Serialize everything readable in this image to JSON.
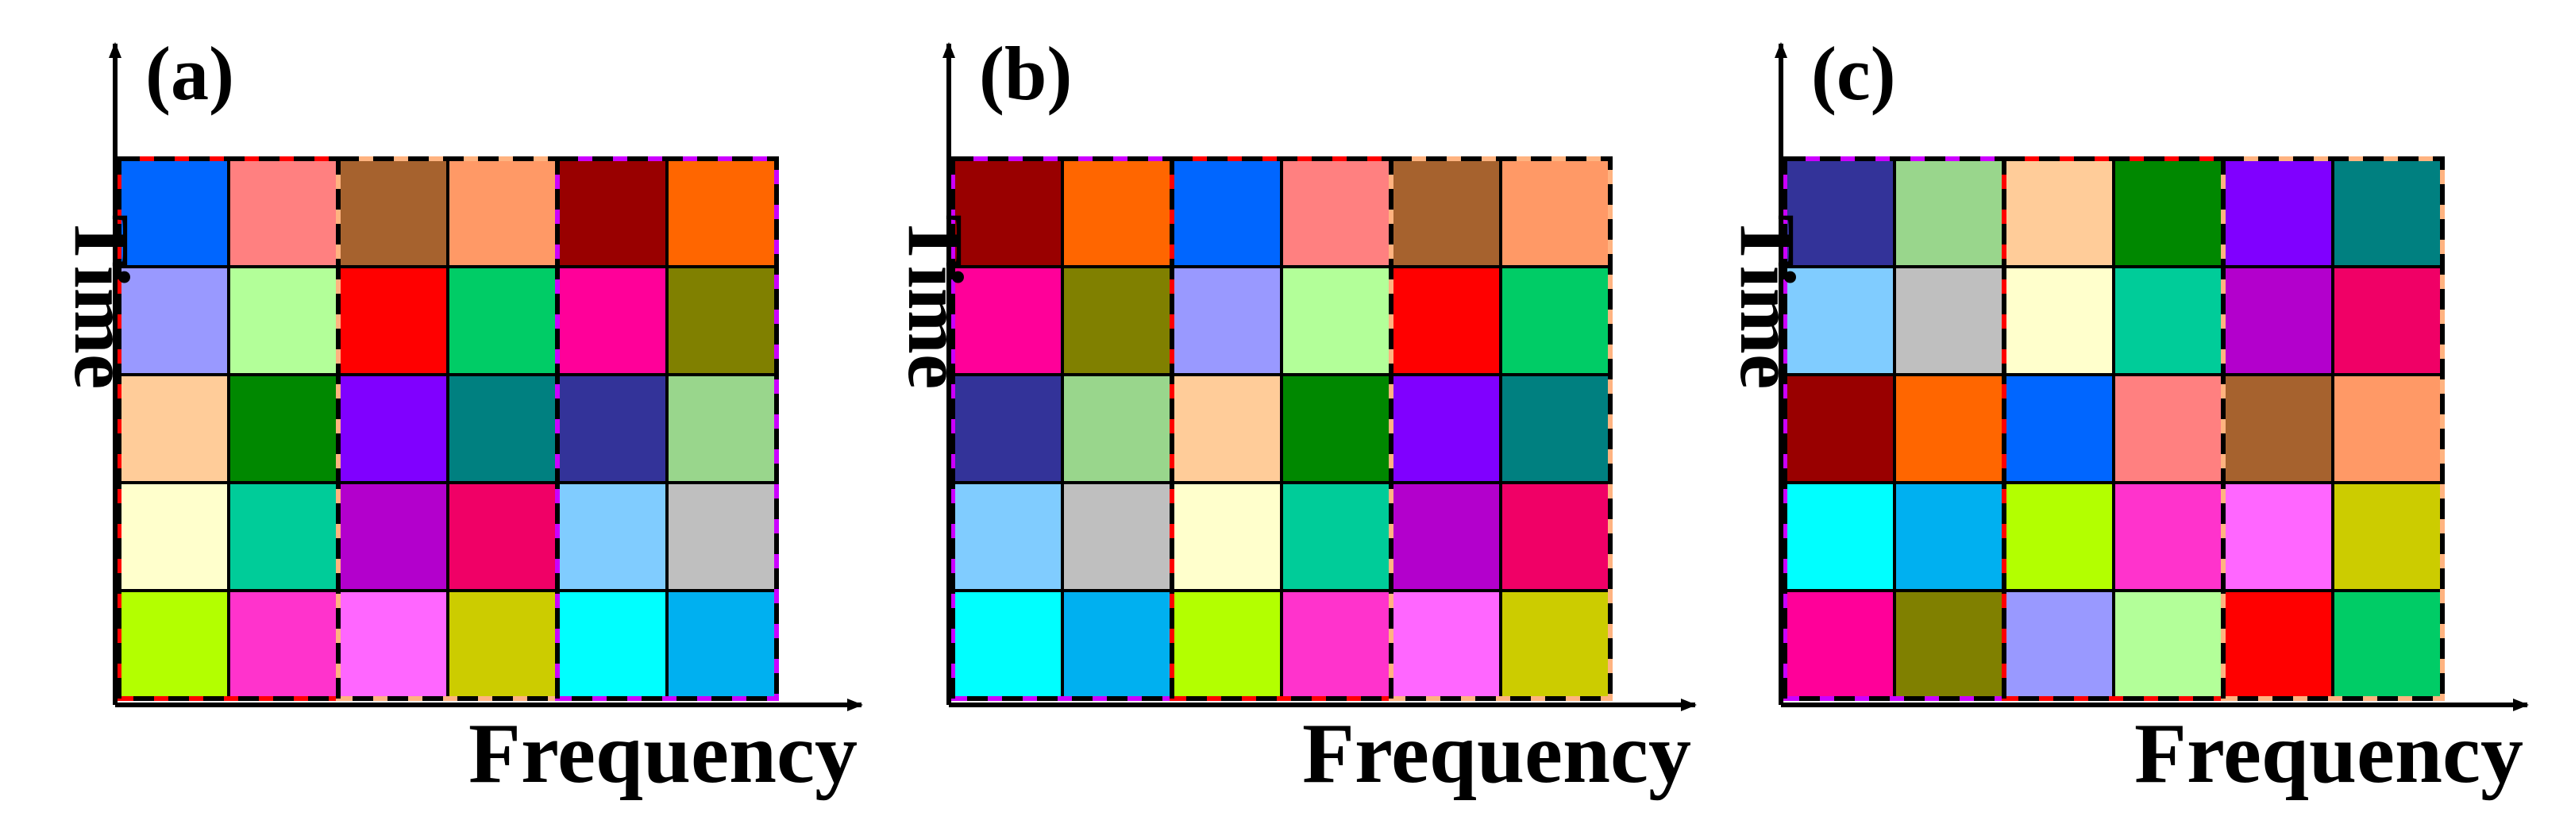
{
  "panels": [
    {
      "id": "a",
      "panel_label": "(a)",
      "time_label": "Time",
      "frequency_label": "Frequency",
      "cells": [
        [
          "#0066FF",
          "#FF8080",
          "#A6622E",
          "#FF9966",
          "#990000",
          "#FF6600"
        ],
        [
          "#9999FF",
          "#B3FF99",
          "#FF0000",
          "#00CC66",
          "#FF0099",
          "#808000"
        ],
        [
          "#FFCC99",
          "#008800",
          "#8000FF",
          "#008080",
          "#333399",
          "#99D68C"
        ],
        [
          "#FFFFCC",
          "#00CC99",
          "#B300CC",
          "#F00066",
          "#80CCFF",
          "#BFBFBF"
        ],
        [
          "#B3FF00",
          "#FF33CC",
          "#FF66FF",
          "#CCCC00",
          "#00FFFF",
          "#00B0F0"
        ]
      ],
      "group_borders": [
        "#FF0000",
        "#FFB380",
        "#CC00FF"
      ]
    },
    {
      "id": "b",
      "panel_label": "(b)",
      "time_label": "Time",
      "frequency_label": "Frequency",
      "cells": [
        [
          "#990000",
          "#FF6600",
          "#0066FF",
          "#FF8080",
          "#A6622E",
          "#FF9966"
        ],
        [
          "#FF0099",
          "#808000",
          "#9999FF",
          "#B3FF99",
          "#FF0000",
          "#00CC66"
        ],
        [
          "#333399",
          "#99D68C",
          "#FFCC99",
          "#008800",
          "#8000FF",
          "#008080"
        ],
        [
          "#80CCFF",
          "#BFBFBF",
          "#FFFFCC",
          "#00CC99",
          "#B300CC",
          "#F00066"
        ],
        [
          "#00FFFF",
          "#00B0F0",
          "#B3FF00",
          "#FF33CC",
          "#FF66FF",
          "#CCCC00"
        ]
      ],
      "group_borders": [
        "#CC00FF",
        "#FF0000",
        "#FFB380"
      ]
    },
    {
      "id": "c",
      "panel_label": "(c)",
      "time_label": "Time",
      "frequency_label": "Frequency",
      "cells": [
        [
          "#333399",
          "#99D68C",
          "#FFCC99",
          "#008800",
          "#8000FF",
          "#008080"
        ],
        [
          "#80CCFF",
          "#BFBFBF",
          "#FFFFCC",
          "#00CC99",
          "#B300CC",
          "#F00066"
        ],
        [
          "#990000",
          "#FF6600",
          "#0066FF",
          "#FF8080",
          "#A6622E",
          "#FF9966"
        ],
        [
          "#00FFFF",
          "#00B0F0",
          "#B3FF00",
          "#FF33CC",
          "#FF66FF",
          "#CCCC00"
        ],
        [
          "#FF0099",
          "#808000",
          "#9999FF",
          "#B3FF99",
          "#FF0000",
          "#00CC66"
        ]
      ],
      "group_borders": [
        "#CC00FF",
        "#FF0000",
        "#FFB380"
      ]
    }
  ]
}
